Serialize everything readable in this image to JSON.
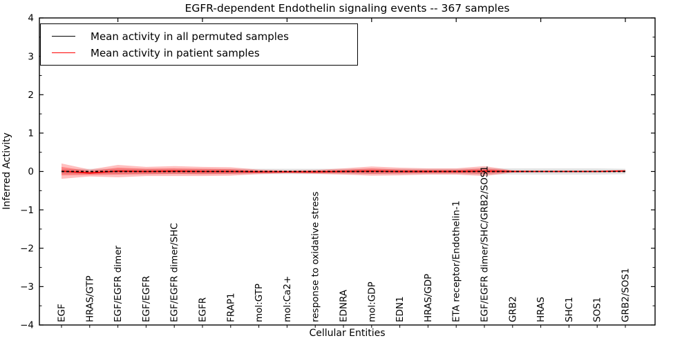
{
  "chart_data": {
    "type": "line",
    "title": "EGFR-dependent Endothelin signaling events -- 367 samples",
    "xlabel": "Cellular Entities",
    "ylabel": "Inferred Activity",
    "ylim": [
      -4,
      4
    ],
    "grid": false,
    "legend_position": "upper left",
    "ytick_values": [
      4,
      3,
      2,
      1,
      0,
      -1,
      -2,
      -3,
      -4
    ],
    "ytick_labels": [
      "4",
      "3",
      "2",
      "1",
      "0",
      "−1",
      "−2",
      "−3",
      "−4"
    ],
    "categories": [
      "EGF",
      "HRAS/GTP",
      "EGF/EGFR dimer",
      "EGF/EGFR",
      "EGF/EGFR dimer/SHC",
      "EGFR",
      "FRAP1",
      "mol:GTP",
      "mol:Ca2+",
      "response to oxidative stress",
      "EDNRA",
      "mol:GDP",
      "EDN1",
      "HRAS/GDP",
      "ETA receptor/Endothelin-1",
      "EGF/EGFR dimer/SHC/GRB2/SOS1",
      "GRB2",
      "HRAS",
      "SHC1",
      "SOS1",
      "GRB2/SOS1"
    ],
    "series": [
      {
        "name": "Mean activity in all permuted samples",
        "color": "#000000",
        "style": "dashed",
        "values": [
          0,
          0,
          0,
          0,
          0,
          0,
          0,
          0,
          0,
          0,
          0,
          0,
          0,
          0,
          0,
          0,
          0,
          0,
          0,
          0,
          0
        ]
      },
      {
        "name": "Mean activity in patient samples",
        "color": "#ff0000",
        "style": "solid",
        "values": [
          0.01,
          -0.04,
          0.01,
          0,
          0.01,
          0,
          0,
          -0.01,
          -0.01,
          -0.01,
          0,
          0.01,
          0,
          0,
          0,
          0.01,
          0,
          0,
          0,
          0,
          0.01
        ]
      }
    ],
    "bands": [
      {
        "name": "permuted-samples-range",
        "color": "#000000",
        "opacity": 0.11,
        "upper": [
          0.06,
          0.07,
          0.07,
          0.07,
          0.07,
          0.07,
          0.07,
          0.07,
          0.07,
          0.07,
          0.07,
          0.07,
          0.07,
          0.07,
          0.07,
          0.08,
          0.08,
          0.08,
          0.08,
          0.08,
          0.07
        ],
        "lower": [
          -0.06,
          -0.07,
          -0.07,
          -0.07,
          -0.07,
          -0.07,
          -0.07,
          -0.07,
          -0.07,
          -0.07,
          -0.07,
          -0.07,
          -0.07,
          -0.07,
          -0.07,
          -0.08,
          -0.08,
          -0.08,
          -0.08,
          -0.08,
          -0.07
        ]
      },
      {
        "name": "patient-samples-outer-band",
        "color": "#ff0000",
        "opacity": 0.25,
        "upper": [
          0.21,
          0.05,
          0.17,
          0.12,
          0.14,
          0.12,
          0.11,
          0.05,
          0.03,
          0.04,
          0.08,
          0.13,
          0.1,
          0.08,
          0.08,
          0.14,
          0.03,
          0.02,
          0.02,
          0.02,
          0.04
        ],
        "lower": [
          -0.19,
          -0.13,
          -0.15,
          -0.12,
          -0.12,
          -0.12,
          -0.11,
          -0.07,
          -0.05,
          -0.06,
          -0.08,
          -0.11,
          -0.1,
          -0.08,
          -0.08,
          -0.12,
          -0.03,
          -0.02,
          -0.02,
          -0.02,
          -0.02
        ]
      },
      {
        "name": "patient-samples-inner-band",
        "color": "#ff0000",
        "opacity": 0.3,
        "upper": [
          0.12,
          0.01,
          0.1,
          0.07,
          0.08,
          0.07,
          0.06,
          0.02,
          0.01,
          0.02,
          0.04,
          0.08,
          0.05,
          0.04,
          0.04,
          0.08,
          0.02,
          0.01,
          0.01,
          0.01,
          0.03
        ],
        "lower": [
          -0.1,
          -0.09,
          -0.08,
          -0.07,
          -0.06,
          -0.07,
          -0.06,
          -0.04,
          -0.03,
          -0.04,
          -0.04,
          -0.06,
          -0.05,
          -0.04,
          -0.04,
          -0.06,
          -0.02,
          -0.01,
          -0.01,
          -0.01,
          -0.01
        ]
      }
    ]
  }
}
